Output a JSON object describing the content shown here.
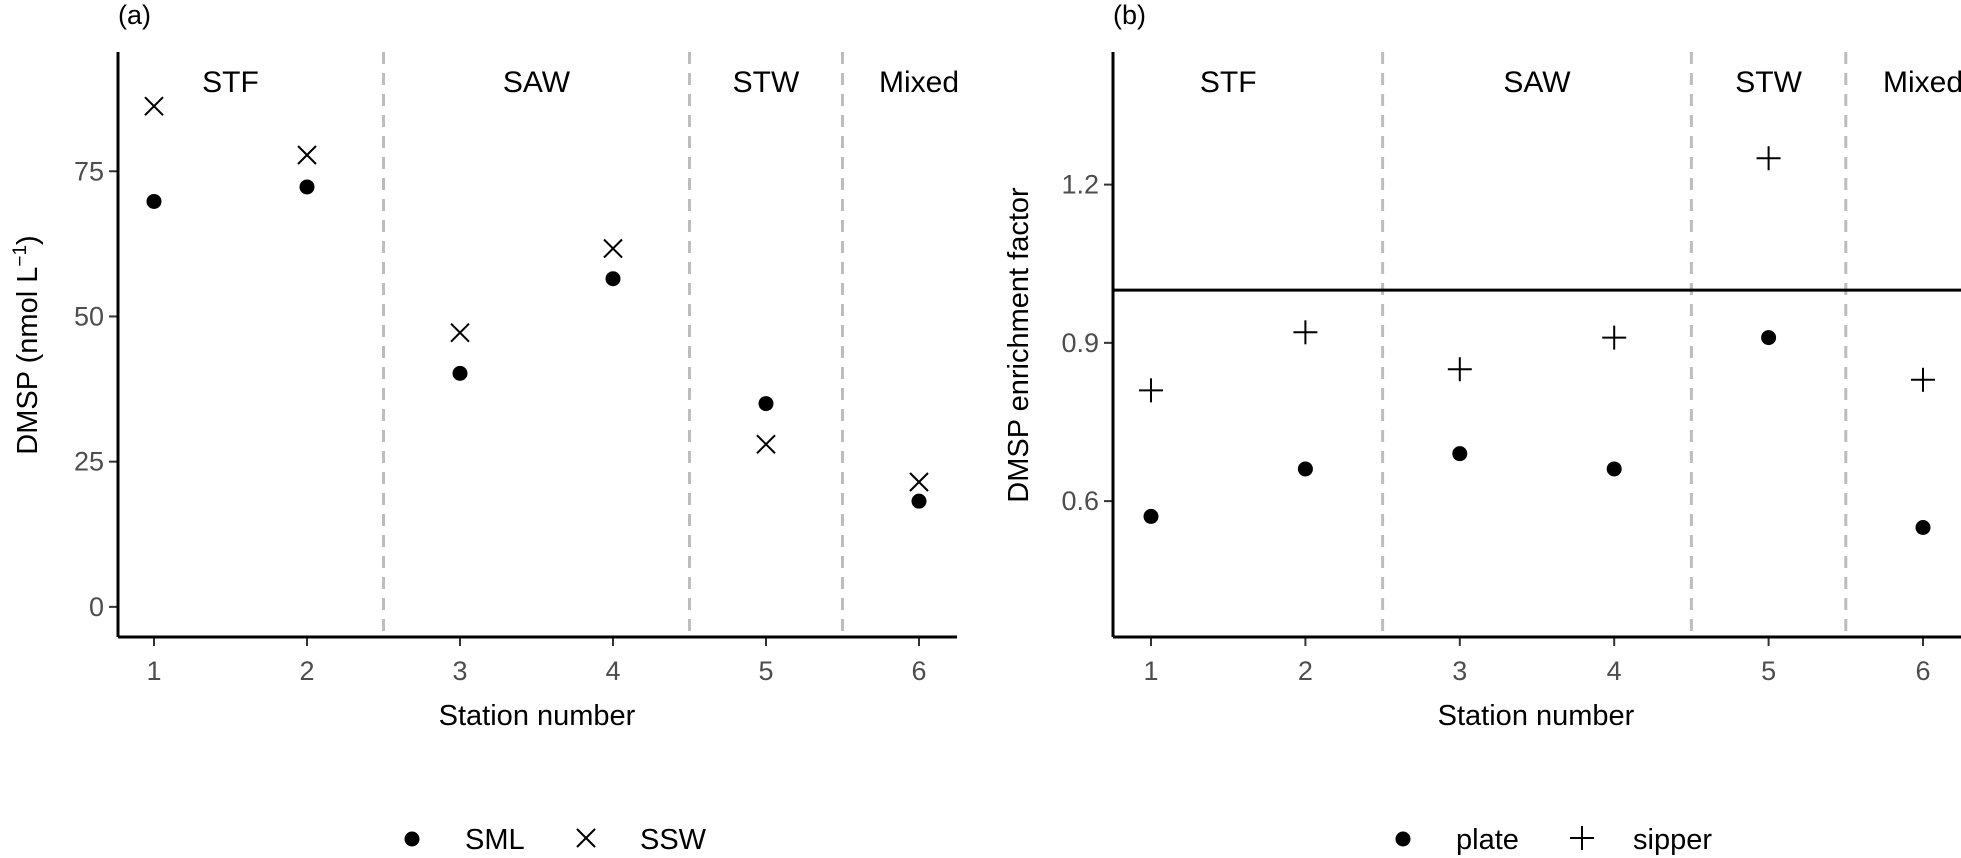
{
  "chart_data": [
    {
      "type": "scatter",
      "panel_label": "(a)",
      "xlabel": "Station number",
      "ylabel_main": "DMSP (nmol L",
      "ylabel_sup": "−1",
      "ylabel_close": ")",
      "x_ticks": [
        "1",
        "2",
        "3",
        "4",
        "5",
        "6"
      ],
      "y_ticks": [
        0,
        25,
        50,
        75
      ],
      "ylim": [
        -4.5,
        94.5
      ],
      "xlim": [
        0.75,
        6.25
      ],
      "regions": [
        {
          "label": "STF",
          "center": 1.5
        },
        {
          "label": "SAW",
          "center": 3.5
        },
        {
          "label": "STW",
          "center": 5.0
        },
        {
          "label": "Mixed",
          "center": 6.0
        }
      ],
      "dividers": [
        2.5,
        4.5,
        5.5
      ],
      "series": [
        {
          "name": "SML",
          "marker": "dot",
          "x": [
            1,
            2,
            3,
            4,
            5,
            6
          ],
          "values": [
            69.8,
            72.3,
            40.2,
            56.5,
            35.0,
            18.2
          ]
        },
        {
          "name": "SSW",
          "marker": "cross",
          "x": [
            1,
            2,
            3,
            4,
            5,
            6
          ],
          "values": [
            86.2,
            77.8,
            47.2,
            61.7,
            28.0,
            21.5
          ]
        }
      ],
      "legend": [
        "SML",
        "SSW"
      ]
    },
    {
      "type": "scatter",
      "panel_label": "(b)",
      "xlabel": "Station number",
      "ylabel": "DMSP enrichment factor",
      "x_ticks": [
        "1",
        "2",
        "3",
        "4",
        "5",
        "6"
      ],
      "y_ticks": [
        0.6,
        0.9,
        1.2
      ],
      "y_tick_labels": [
        "0.6",
        "0.9",
        "1.2"
      ],
      "ylim": [
        0.35,
        1.44
      ],
      "xlim": [
        0.75,
        6.25
      ],
      "reference_line": 1.0,
      "regions": [
        {
          "label": "STF",
          "center": 1.5
        },
        {
          "label": "SAW",
          "center": 3.5
        },
        {
          "label": "STW",
          "center": 5.0
        },
        {
          "label": "Mixed",
          "center": 6.0
        }
      ],
      "dividers": [
        2.5,
        4.5,
        5.5
      ],
      "series": [
        {
          "name": "plate",
          "marker": "dot",
          "x": [
            1,
            2,
            3,
            4,
            5,
            6
          ],
          "values": [
            0.571,
            0.661,
            0.69,
            0.661,
            0.91,
            0.55
          ]
        },
        {
          "name": "sipper",
          "marker": "plus",
          "x": [
            1,
            2,
            3,
            4,
            5,
            6
          ],
          "values": [
            0.81,
            0.92,
            0.85,
            0.91,
            1.25,
            0.83
          ]
        }
      ],
      "legend": [
        "plate",
        "sipper"
      ]
    }
  ]
}
